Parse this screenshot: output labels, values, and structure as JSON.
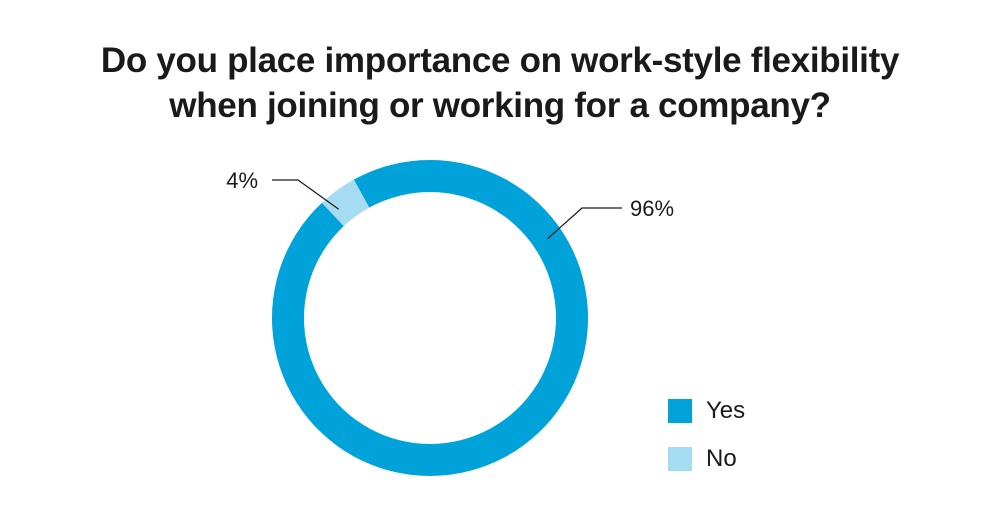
{
  "chart_data": {
    "type": "pie",
    "title_lines": [
      "Do you place importance on work-style flexibility",
      "when joining or working for a company?"
    ],
    "donut": true,
    "slices": [
      {
        "name": "Yes",
        "value": 96,
        "label": "96%",
        "color": "#00a3d9"
      },
      {
        "name": "No",
        "value": 4,
        "label": "4%",
        "color": "#a6dcf1"
      }
    ],
    "legend": {
      "position": "bottom-right",
      "items": [
        {
          "label": "Yes",
          "color": "#00a3d9"
        },
        {
          "label": "No",
          "color": "#a6dcf1"
        }
      ]
    }
  }
}
